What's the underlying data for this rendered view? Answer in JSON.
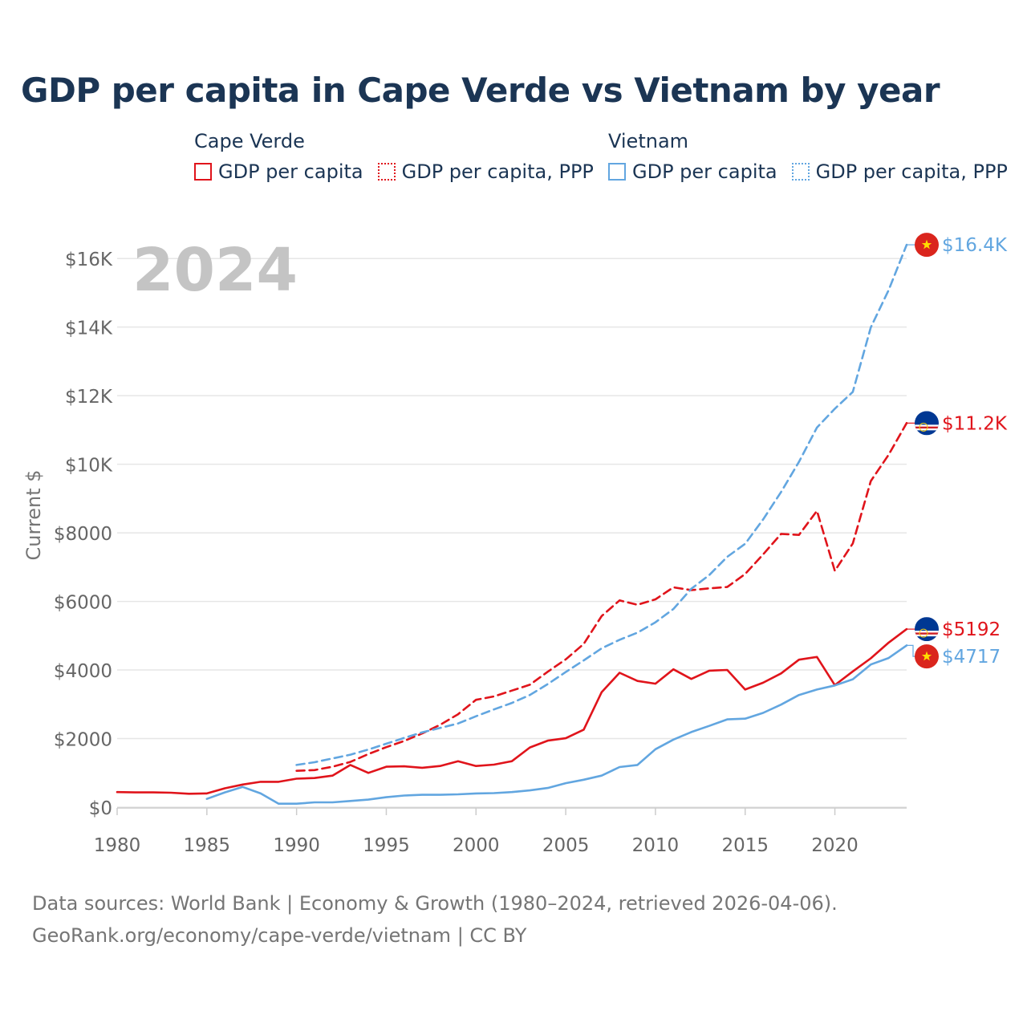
{
  "chart_data": {
    "type": "line",
    "title": "GDP per capita in Cape Verde vs Vietnam by year",
    "year_label": "2024",
    "ylabel": "Current $",
    "xlabel": "",
    "xlim": [
      1980,
      2024
    ],
    "ylim": [
      0,
      16800
    ],
    "x_ticks": [
      1980,
      1985,
      1990,
      1995,
      2000,
      2005,
      2010,
      2015,
      2020
    ],
    "y_ticks": [
      {
        "value": 0,
        "label": "$0"
      },
      {
        "value": 2000,
        "label": "$2000"
      },
      {
        "value": 4000,
        "label": "$4000"
      },
      {
        "value": 6000,
        "label": "$6000"
      },
      {
        "value": 8000,
        "label": "$8000"
      },
      {
        "value": 10000,
        "label": "$10K"
      },
      {
        "value": 12000,
        "label": "$12K"
      },
      {
        "value": 14000,
        "label": "$14K"
      },
      {
        "value": 16000,
        "label": "$16K"
      }
    ],
    "grid": true,
    "legend": [
      {
        "country": "Cape Verde",
        "items": [
          {
            "label": "GDP per capita",
            "color": "#e0141b",
            "style": "solid"
          },
          {
            "label": "GDP per capita, PPP",
            "color": "#e0141b",
            "style": "dotted"
          }
        ]
      },
      {
        "country": "Vietnam",
        "items": [
          {
            "label": "GDP per capita",
            "color": "#62a6e0",
            "style": "solid"
          },
          {
            "label": "GDP per capita, PPP",
            "color": "#62a6e0",
            "style": "dotted"
          }
        ]
      }
    ],
    "series": [
      {
        "name": "Cape Verde GDP per capita",
        "country": "Cape Verde",
        "color": "#e0141b",
        "dash": false,
        "end_label": "$5192",
        "flag": "cape-verde",
        "x": [
          1980,
          1981,
          1982,
          1983,
          1984,
          1985,
          1986,
          1987,
          1988,
          1989,
          1990,
          1991,
          1992,
          1993,
          1994,
          1995,
          1996,
          1997,
          1998,
          1999,
          2000,
          2001,
          2002,
          2003,
          2004,
          2005,
          2006,
          2007,
          2008,
          2009,
          2010,
          2011,
          2012,
          2013,
          2014,
          2015,
          2016,
          2017,
          2018,
          2019,
          2020,
          2021,
          2022,
          2023,
          2024
        ],
        "values": [
          440,
          430,
          430,
          420,
          390,
          400,
          550,
          660,
          740,
          740,
          830,
          850,
          920,
          1230,
          1000,
          1180,
          1190,
          1150,
          1200,
          1340,
          1200,
          1240,
          1340,
          1740,
          1940,
          2010,
          2260,
          3350,
          3920,
          3680,
          3600,
          4020,
          3740,
          3980,
          4000,
          3430,
          3630,
          3900,
          4300,
          4380,
          3560,
          3960,
          4340,
          4800,
          5192
        ]
      },
      {
        "name": "Cape Verde GDP per capita, PPP",
        "country": "Cape Verde",
        "color": "#e0141b",
        "dash": true,
        "end_label": "$11.2K",
        "flag": "cape-verde",
        "x": [
          1990,
          1991,
          1992,
          1993,
          1994,
          1995,
          1996,
          1997,
          1998,
          1999,
          2000,
          2001,
          2002,
          2003,
          2004,
          2005,
          2006,
          2007,
          2008,
          2009,
          2010,
          2011,
          2012,
          2013,
          2014,
          2015,
          2016,
          2017,
          2018,
          2019,
          2020,
          2021,
          2022,
          2023,
          2024
        ],
        "values": [
          1060,
          1080,
          1180,
          1320,
          1550,
          1750,
          1930,
          2150,
          2400,
          2710,
          3130,
          3230,
          3400,
          3570,
          3950,
          4310,
          4760,
          5570,
          6030,
          5900,
          6060,
          6410,
          6330,
          6380,
          6420,
          6800,
          7370,
          7970,
          7940,
          8640,
          6890,
          7690,
          9510,
          10280,
          11200
        ]
      },
      {
        "name": "Vietnam GDP per capita",
        "country": "Vietnam",
        "color": "#62a6e0",
        "dash": false,
        "end_label": "$4717",
        "flag": "vietnam",
        "x": [
          1985,
          1986,
          1987,
          1988,
          1989,
          1990,
          1991,
          1992,
          1993,
          1994,
          1995,
          1996,
          1997,
          1998,
          1999,
          2000,
          2001,
          2002,
          2003,
          2004,
          2005,
          2006,
          2007,
          2008,
          2009,
          2010,
          2011,
          2012,
          2013,
          2014,
          2015,
          2016,
          2017,
          2018,
          2019,
          2020,
          2021,
          2022,
          2023,
          2024
        ],
        "values": [
          240,
          430,
          590,
          400,
          100,
          100,
          140,
          140,
          180,
          220,
          290,
          340,
          360,
          360,
          375,
          400,
          410,
          440,
          490,
          560,
          700,
          800,
          920,
          1170,
          1230,
          1690,
          1970,
          2190,
          2370,
          2560,
          2580,
          2750,
          2990,
          3270,
          3430,
          3550,
          3730,
          4160,
          4350,
          4717
        ]
      },
      {
        "name": "Vietnam GDP per capita, PPP",
        "country": "Vietnam",
        "color": "#62a6e0",
        "dash": true,
        "end_label": "$16.4K",
        "flag": "vietnam",
        "x": [
          1990,
          1991,
          1992,
          1993,
          1994,
          1995,
          1996,
          1997,
          1998,
          1999,
          2000,
          2001,
          2002,
          2003,
          2004,
          2005,
          2006,
          2007,
          2008,
          2009,
          2010,
          2011,
          2012,
          2013,
          2014,
          2015,
          2016,
          2017,
          2018,
          2019,
          2020,
          2021,
          2022,
          2023,
          2024
        ],
        "values": [
          1230,
          1310,
          1420,
          1530,
          1680,
          1850,
          2020,
          2180,
          2310,
          2440,
          2650,
          2850,
          3040,
          3270,
          3590,
          3940,
          4280,
          4630,
          4880,
          5090,
          5390,
          5780,
          6370,
          6770,
          7300,
          7680,
          8390,
          9190,
          10070,
          11070,
          11620,
          12110,
          13990,
          15080,
          16400
        ]
      }
    ]
  },
  "footer": {
    "line1": "Data sources: World Bank | Economy & Growth (1980–2024, retrieved 2026-04-06).",
    "line2": "GeoRank.org/economy/cape-verde/vietnam | CC BY"
  },
  "colors": {
    "cape_verde": "#e0141b",
    "vietnam": "#62a6e0",
    "title": "#1b3554",
    "axis_text": "#666666",
    "grid": "#e6e6e6",
    "year_watermark": "#c4c4c4"
  }
}
